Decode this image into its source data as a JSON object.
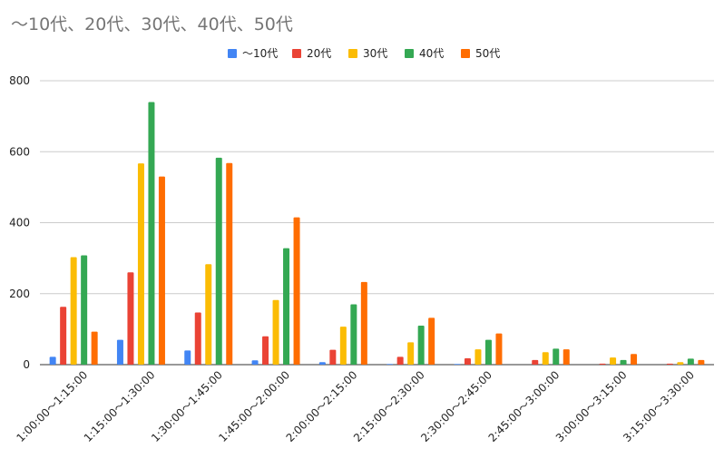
{
  "chart_data": {
    "type": "bar",
    "title": "〜10代、20代、30代、40代、50代",
    "xlabel": "",
    "ylabel": "",
    "ylim": [
      0,
      800
    ],
    "yticks": [
      0,
      200,
      400,
      600,
      800
    ],
    "grid": true,
    "legend_position": "top-center",
    "categories": [
      "1:00:00〜1:15:00",
      "1:15:00〜1:30:00",
      "1:30:00〜1:45:00",
      "1:45:00〜2:00:00",
      "2:00:00〜2:15:00",
      "2:15:00〜2:30:00",
      "2:30:00〜2:45:00",
      "2:45:00〜3:00:00",
      "3:00:00〜3:15:00",
      "3:15:00〜3:30:00"
    ],
    "series": [
      {
        "name": "〜10代",
        "color": "#4285f4",
        "values": [
          22,
          70,
          40,
          12,
          7,
          2,
          2,
          0,
          0,
          0
        ]
      },
      {
        "name": "20代",
        "color": "#ea4335",
        "values": [
          163,
          260,
          147,
          80,
          42,
          22,
          18,
          13,
          3,
          3
        ]
      },
      {
        "name": "30代",
        "color": "#fbbc04",
        "values": [
          303,
          567,
          283,
          182,
          107,
          63,
          43,
          35,
          20,
          7
        ]
      },
      {
        "name": "40代",
        "color": "#34a853",
        "values": [
          308,
          740,
          583,
          328,
          170,
          110,
          70,
          45,
          13,
          17
        ]
      },
      {
        "name": "50代",
        "color": "#ff6d01",
        "values": [
          93,
          530,
          568,
          415,
          233,
          132,
          88,
          43,
          30,
          13
        ]
      }
    ]
  }
}
